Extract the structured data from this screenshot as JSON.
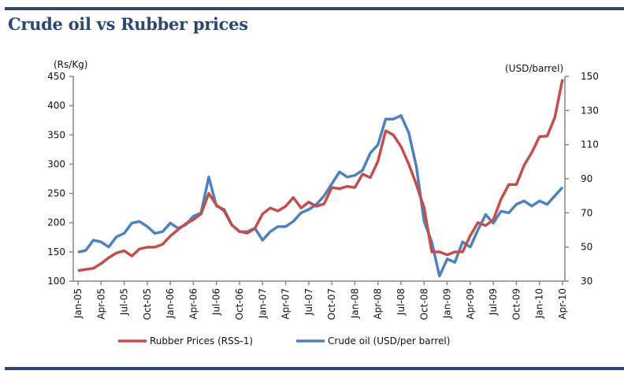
{
  "title": "Crude oil vs Rubber prices",
  "chart_data": {
    "type": "line",
    "title": "Crude oil vs Rubber prices",
    "ylabel_left": "(Rs/Kg)",
    "ylabel_right": "(USD/barrel)",
    "ylim_left": [
      100,
      450
    ],
    "yticks_left": [
      100,
      150,
      200,
      250,
      300,
      350,
      400,
      450
    ],
    "ylim_right": [
      30,
      150
    ],
    "yticks_right": [
      30,
      50,
      70,
      90,
      110,
      130,
      150
    ],
    "grid": false,
    "legend": "bottom",
    "x": [
      "Jan-05",
      "Feb-05",
      "Mar-05",
      "Apr-05",
      "May-05",
      "Jun-05",
      "Jul-05",
      "Aug-05",
      "Sep-05",
      "Oct-05",
      "Nov-05",
      "Dec-05",
      "Jan-06",
      "Feb-06",
      "Mar-06",
      "Apr-06",
      "May-06",
      "Jun-06",
      "Jul-06",
      "Aug-06",
      "Sep-06",
      "Oct-06",
      "Nov-06",
      "Dec-06",
      "Jan-07",
      "Feb-07",
      "Mar-07",
      "Apr-07",
      "May-07",
      "Jun-07",
      "Jul-07",
      "Aug-07",
      "Sep-07",
      "Oct-07",
      "Nov-07",
      "Dec-07",
      "Jan-08",
      "Feb-08",
      "Mar-08",
      "Apr-08",
      "May-08",
      "Jun-08",
      "Jul-08",
      "Aug-08",
      "Sep-08",
      "Oct-08",
      "Nov-08",
      "Dec-08",
      "Jan-09",
      "Feb-09",
      "Mar-09",
      "Apr-09",
      "May-09",
      "Jun-09",
      "Jul-09",
      "Aug-09",
      "Sep-09",
      "Oct-09",
      "Nov-09",
      "Dec-09",
      "Jan-10",
      "Feb-10",
      "Mar-10",
      "Apr-10"
    ],
    "xtick_labels": [
      "Jan-05",
      "Apr-05",
      "Jul-05",
      "Oct-05",
      "Jan-06",
      "Apr-06",
      "Jul-06",
      "Oct-06",
      "Jan-07",
      "Apr-07",
      "Jul-07",
      "Oct-07",
      "Jan-08",
      "Apr-08",
      "Jul-08",
      "Oct-08",
      "Jan-09",
      "Apr-09",
      "Jul-09",
      "Oct-09",
      "Jan-10",
      "Apr-10"
    ],
    "series": [
      {
        "name": "Rubber Prices (RSS-1)",
        "axis": "left",
        "color": "#c0504d",
        "values": [
          118,
          120,
          122,
          130,
          140,
          148,
          152,
          143,
          155,
          158,
          158,
          163,
          177,
          188,
          198,
          205,
          215,
          250,
          230,
          220,
          196,
          185,
          182,
          190,
          215,
          225,
          220,
          228,
          243,
          225,
          235,
          228,
          232,
          260,
          258,
          262,
          260,
          283,
          277,
          305,
          357,
          350,
          330,
          300,
          265,
          225,
          150,
          150,
          145,
          150,
          150,
          178,
          200,
          195,
          205,
          240,
          265,
          265,
          298,
          320,
          347,
          348,
          380,
          445
        ]
      },
      {
        "name": "Crude oil (USD/per barrel)",
        "axis": "right",
        "color": "#4f81bd",
        "values": [
          47,
          48,
          54,
          53,
          50,
          56,
          58,
          64,
          65,
          62,
          58,
          59,
          64,
          61,
          63,
          68,
          70,
          91,
          74,
          72,
          63,
          59,
          59,
          61,
          54,
          59,
          62,
          62,
          65,
          70,
          72,
          75,
          80,
          87,
          94,
          91,
          92,
          95,
          105,
          110,
          125,
          125,
          127,
          117,
          97,
          65,
          53,
          33,
          43,
          41,
          53,
          50,
          60,
          69,
          64,
          71,
          70,
          75,
          77,
          74,
          77,
          75,
          80,
          85
        ]
      }
    ]
  }
}
